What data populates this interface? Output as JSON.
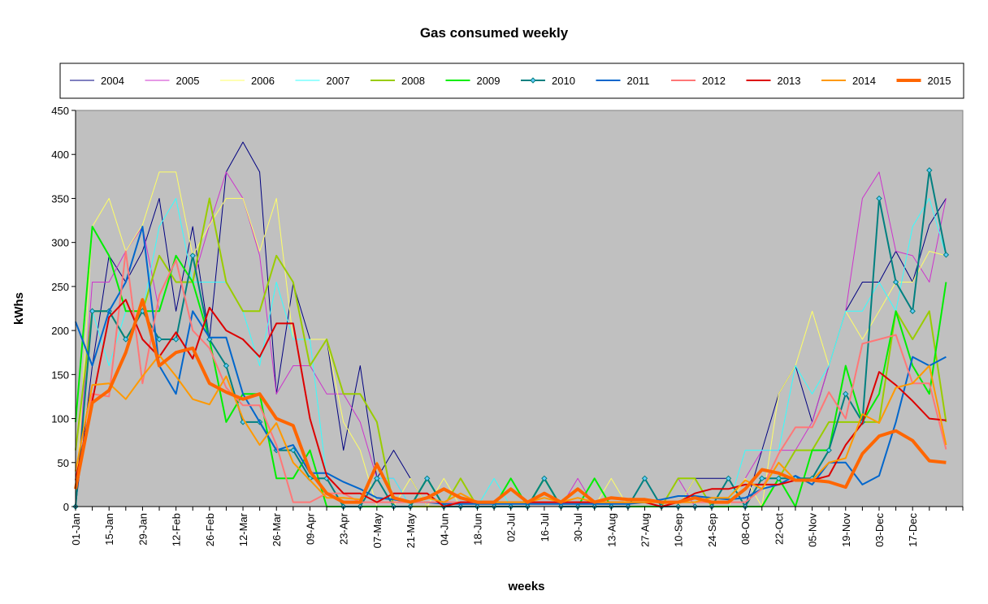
{
  "chart_data": {
    "type": "line",
    "title": "Gas consumed weekly",
    "xlabel": "weeks",
    "ylabel": "kWhs",
    "ylim": [
      0,
      450
    ],
    "yticks": [
      0,
      50,
      100,
      150,
      200,
      250,
      300,
      350,
      400,
      450
    ],
    "x_count": 53,
    "x_ticks": [
      {
        "index": 0,
        "label": "01-Jan"
      },
      {
        "index": 2,
        "label": "15-Jan"
      },
      {
        "index": 4,
        "label": "29-Jan"
      },
      {
        "index": 6,
        "label": "12-Feb"
      },
      {
        "index": 8,
        "label": "26-Feb"
      },
      {
        "index": 10,
        "label": "12-Mar"
      },
      {
        "index": 12,
        "label": "26-Mar"
      },
      {
        "index": 14,
        "label": "09-Apr"
      },
      {
        "index": 16,
        "label": "23-Apr"
      },
      {
        "index": 18,
        "label": "07-May"
      },
      {
        "index": 20,
        "label": "21-May"
      },
      {
        "index": 22,
        "label": "04-Jun"
      },
      {
        "index": 24,
        "label": "18-Jun"
      },
      {
        "index": 26,
        "label": "02-Jul"
      },
      {
        "index": 28,
        "label": "16-Jul"
      },
      {
        "index": 30,
        "label": "30-Jul"
      },
      {
        "index": 32,
        "label": "13-Aug"
      },
      {
        "index": 34,
        "label": "27-Aug"
      },
      {
        "index": 36,
        "label": "10-Sep"
      },
      {
        "index": 38,
        "label": "24-Sep"
      },
      {
        "index": 40,
        "label": "08-Oct"
      },
      {
        "index": 42,
        "label": "22-Oct"
      },
      {
        "index": 44,
        "label": "05-Nov"
      },
      {
        "index": 46,
        "label": "19-Nov"
      },
      {
        "index": 48,
        "label": "03-Dec"
      },
      {
        "index": 50,
        "label": "17-Dec"
      }
    ],
    "grid": false,
    "plot_background": "#c0c0c0",
    "legend_position": "top",
    "series": [
      {
        "name": "2004",
        "color": "#000080",
        "width": 1,
        "markers": false,
        "values": [
          0,
          160,
          285,
          255,
          290,
          350,
          222,
          318,
          190,
          380,
          414,
          380,
          128,
          253,
          190,
          190,
          64,
          160,
          32,
          64,
          32,
          0,
          0,
          0,
          0,
          0,
          0,
          0,
          0,
          0,
          0,
          0,
          0,
          0,
          0,
          0,
          0,
          32,
          32,
          32,
          0,
          64,
          128,
          160,
          96,
          160,
          222,
          255,
          255,
          290,
          255,
          320,
          350
        ]
      },
      {
        "name": "2005",
        "color": "#cc33cc",
        "width": 1,
        "markers": false,
        "values": [
          0,
          255,
          255,
          290,
          318,
          222,
          285,
          255,
          320,
          380,
          350,
          285,
          128,
          160,
          160,
          128,
          128,
          96,
          32,
          32,
          0,
          0,
          0,
          0,
          0,
          0,
          0,
          0,
          0,
          0,
          32,
          0,
          0,
          0,
          0,
          0,
          32,
          0,
          0,
          0,
          32,
          64,
          64,
          64,
          96,
          160,
          222,
          350,
          380,
          290,
          285,
          255,
          350
        ]
      },
      {
        "name": "2006",
        "color": "#ffff66",
        "width": 1,
        "markers": false,
        "values": [
          0,
          318,
          350,
          290,
          320,
          380,
          380,
          285,
          320,
          350,
          350,
          290,
          350,
          190,
          190,
          190,
          96,
          64,
          0,
          0,
          32,
          0,
          32,
          0,
          0,
          0,
          0,
          0,
          0,
          0,
          0,
          0,
          32,
          0,
          0,
          0,
          0,
          32,
          0,
          0,
          32,
          0,
          128,
          160,
          222,
          160,
          222,
          190,
          222,
          255,
          255,
          290,
          285
        ]
      },
      {
        "name": "2007",
        "color": "#33ffff",
        "width": 1,
        "markers": false,
        "values": [
          0,
          222,
          160,
          222,
          222,
          318,
          350,
          255,
          255,
          255,
          222,
          160,
          255,
          190,
          190,
          32,
          0,
          0,
          32,
          32,
          0,
          0,
          0,
          0,
          0,
          32,
          0,
          0,
          0,
          0,
          0,
          0,
          0,
          0,
          0,
          0,
          0,
          0,
          0,
          0,
          64,
          64,
          64,
          160,
          128,
          160,
          222,
          222,
          255,
          222,
          318,
          350,
          285
        ]
      },
      {
        "name": "2008",
        "color": "#99cc00",
        "width": 2,
        "markers": false,
        "values": [
          64,
          222,
          222,
          190,
          222,
          285,
          255,
          255,
          350,
          255,
          222,
          222,
          285,
          255,
          160,
          190,
          128,
          128,
          96,
          0,
          0,
          0,
          0,
          32,
          0,
          0,
          0,
          0,
          32,
          0,
          0,
          0,
          0,
          0,
          0,
          0,
          32,
          32,
          0,
          0,
          0,
          0,
          32,
          64,
          64,
          96,
          96,
          96,
          96,
          222,
          190,
          222,
          96
        ]
      },
      {
        "name": "2009",
        "color": "#00ee00",
        "width": 2,
        "markers": false,
        "values": [
          96,
          318,
          285,
          222,
          222,
          222,
          285,
          255,
          190,
          96,
          128,
          128,
          32,
          32,
          64,
          0,
          0,
          0,
          0,
          0,
          0,
          32,
          0,
          0,
          0,
          0,
          32,
          0,
          32,
          0,
          0,
          32,
          0,
          0,
          0,
          0,
          0,
          0,
          0,
          0,
          0,
          0,
          32,
          0,
          64,
          64,
          160,
          96,
          128,
          222,
          160,
          128,
          255
        ]
      },
      {
        "name": "2010",
        "color": "#008080",
        "width": 2,
        "markers": true,
        "values": [
          0,
          222,
          222,
          190,
          222,
          190,
          190,
          285,
          190,
          160,
          96,
          96,
          64,
          64,
          32,
          32,
          0,
          0,
          32,
          0,
          0,
          32,
          0,
          0,
          0,
          0,
          0,
          0,
          32,
          0,
          0,
          0,
          0,
          0,
          32,
          0,
          0,
          0,
          0,
          32,
          0,
          32,
          32,
          32,
          32,
          64,
          128,
          96,
          350,
          255,
          222,
          382,
          286
        ]
      },
      {
        "name": "2011",
        "color": "#0066cc",
        "width": 2,
        "markers": false,
        "values": [
          210,
          160,
          222,
          255,
          318,
          160,
          128,
          222,
          192,
          192,
          128,
          96,
          64,
          70,
          38,
          38,
          28,
          20,
          10,
          8,
          5,
          5,
          3,
          3,
          3,
          3,
          3,
          3,
          3,
          3,
          3,
          3,
          3,
          3,
          5,
          8,
          12,
          12,
          10,
          8,
          10,
          20,
          25,
          35,
          25,
          50,
          50,
          25,
          35,
          96,
          170,
          160,
          170
        ]
      },
      {
        "name": "2012",
        "color": "#ff7777",
        "width": 2,
        "markers": false,
        "values": [
          20,
          128,
          125,
          290,
          140,
          240,
          280,
          200,
          180,
          135,
          115,
          115,
          70,
          5,
          5,
          15,
          15,
          5,
          5,
          5,
          5,
          5,
          5,
          5,
          5,
          5,
          5,
          5,
          5,
          5,
          5,
          5,
          5,
          5,
          5,
          5,
          5,
          5,
          5,
          5,
          5,
          20,
          60,
          90,
          90,
          130,
          100,
          185,
          190,
          195,
          140,
          140,
          65
        ]
      },
      {
        "name": "2013",
        "color": "#dd0000",
        "width": 2,
        "markers": false,
        "values": [
          30,
          120,
          215,
          235,
          190,
          170,
          198,
          168,
          226,
          200,
          190,
          170,
          208,
          208,
          100,
          35,
          15,
          15,
          5,
          15,
          15,
          15,
          0,
          5,
          5,
          5,
          5,
          5,
          5,
          5,
          5,
          5,
          5,
          5,
          5,
          0,
          5,
          15,
          20,
          20,
          25,
          25,
          25,
          30,
          30,
          35,
          70,
          95,
          153,
          138,
          120,
          100,
          98
        ]
      },
      {
        "name": "2014",
        "color": "#ff9900",
        "width": 2,
        "markers": false,
        "values": [
          40,
          138,
          140,
          122,
          148,
          172,
          148,
          122,
          116,
          148,
          100,
          70,
          95,
          50,
          30,
          10,
          10,
          8,
          50,
          10,
          5,
          10,
          5,
          15,
          5,
          5,
          5,
          5,
          10,
          5,
          10,
          5,
          5,
          5,
          5,
          5,
          5,
          5,
          10,
          10,
          30,
          20,
          50,
          30,
          30,
          50,
          55,
          105,
          95,
          135,
          140,
          160,
          70
        ]
      },
      {
        "name": "2015",
        "color": "#ff6600",
        "width": 4,
        "markers": false,
        "values": [
          20,
          118,
          132,
          175,
          235,
          160,
          175,
          180,
          140,
          130,
          122,
          128,
          100,
          92,
          40,
          15,
          5,
          5,
          48,
          10,
          5,
          10,
          20,
          10,
          5,
          5,
          20,
          5,
          15,
          5,
          20,
          5,
          10,
          8,
          8,
          5,
          5,
          10,
          5,
          5,
          20,
          42,
          38,
          30,
          30,
          28,
          22,
          60,
          80,
          86,
          75,
          52,
          50
        ]
      }
    ]
  }
}
